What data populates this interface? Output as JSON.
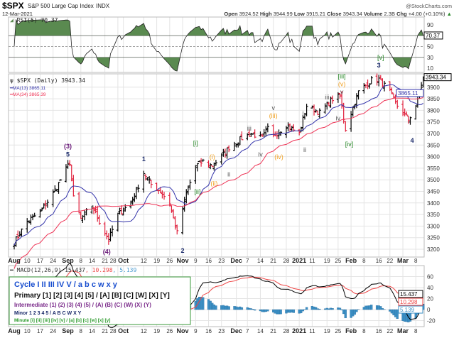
{
  "header": {
    "symbol": "$SPX",
    "name": "S&P 500 Large Cap Index",
    "exchange": "INDX",
    "watermark": "@StockCharts.com",
    "date": "12-Mar-2021",
    "open_label": "Open",
    "open": "3924.52",
    "high_label": "High",
    "high": "3944.99",
    "low_label": "Low",
    "low": "3915.21",
    "close_label": "Close",
    "close": "3943.34",
    "volume_label": "Volume",
    "volume": "2.3B",
    "chg_label": "Chg",
    "chg": "+4.00 (+0.10%)",
    "chg_arrow": "▲"
  },
  "colors": {
    "up": "#000000",
    "down": "#e0203c",
    "ma13": "#3333aa",
    "ma34": "#ee3355",
    "rsi_fill": "#5a8a50",
    "macd": "#000000",
    "signal": "#ee4444",
    "hist": "#3b8fc4",
    "legend_border": "#3a9a3a"
  },
  "chart_data": [
    {
      "type": "line",
      "panel": "RSI",
      "label": "RSI(5)",
      "value": "70.37",
      "ylim": [
        0,
        100
      ],
      "ticks": [
        "90",
        "50",
        "30",
        "10"
      ],
      "levels": [
        70,
        30
      ]
    },
    {
      "type": "ohlc",
      "panel": "price",
      "label": "$SPX (Daily)",
      "value": "3943.34",
      "overlays": [
        {
          "name": "MA(13)",
          "value": "3865.11"
        },
        {
          "name": "MA(34)",
          "value": "3865.39"
        }
      ],
      "ylim": [
        3180,
        3990
      ],
      "yticks": [
        "3900",
        "3850",
        "3800",
        "3750",
        "3700",
        "3650",
        "3600",
        "3550",
        "3500",
        "3450",
        "3400",
        "3350",
        "3300",
        "3250",
        "3200"
      ],
      "approx_closes": [
        [
          "2020-08-03",
          3230
        ],
        [
          "2020-08-10",
          3320
        ],
        [
          "2020-08-17",
          3360
        ],
        [
          "2020-08-24",
          3440
        ],
        [
          "2020-08-28",
          3500
        ],
        [
          "2020-09-02",
          3575
        ],
        [
          "2020-09-04",
          3420
        ],
        [
          "2020-09-08",
          3330
        ],
        [
          "2020-09-14",
          3390
        ],
        [
          "2020-09-18",
          3320
        ],
        [
          "2020-09-23",
          3240
        ],
        [
          "2020-09-28",
          3350
        ],
        [
          "2020-10-05",
          3400
        ],
        [
          "2020-10-12",
          3530
        ],
        [
          "2020-10-16",
          3480
        ],
        [
          "2020-10-21",
          3450
        ],
        [
          "2020-10-26",
          3400
        ],
        [
          "2020-10-30",
          3270
        ],
        [
          "2020-11-04",
          3440
        ],
        [
          "2020-11-09",
          3560
        ],
        [
          "2020-11-13",
          3580
        ],
        [
          "2020-11-18",
          3560
        ],
        [
          "2020-11-23",
          3600
        ],
        [
          "2020-11-27",
          3640
        ],
        [
          "2020-12-04",
          3680
        ],
        [
          "2020-12-09",
          3700
        ],
        [
          "2020-12-15",
          3680
        ],
        [
          "2020-12-18",
          3720
        ],
        [
          "2020-12-21",
          3690
        ],
        [
          "2020-12-28",
          3735
        ],
        [
          "2021-01-04",
          3700
        ],
        [
          "2021-01-08",
          3820
        ],
        [
          "2021-01-15",
          3790
        ],
        [
          "2021-01-22",
          3850
        ],
        [
          "2021-01-26",
          3860
        ],
        [
          "2021-01-29",
          3720
        ],
        [
          "2021-02-05",
          3880
        ],
        [
          "2021-02-12",
          3930
        ],
        [
          "2021-02-16",
          3935
        ],
        [
          "2021-02-22",
          3880
        ],
        [
          "2021-02-25",
          3830
        ],
        [
          "2021-03-04",
          3760
        ],
        [
          "2021-03-08",
          3820
        ],
        [
          "2021-03-12",
          3943
        ]
      ],
      "wave_labels": [
        {
          "text": "(3)",
          "date": "2020-09-01",
          "price": 3635,
          "color": "#6a1b7a"
        },
        {
          "text": "5",
          "date": "2020-09-01",
          "price": 3600,
          "color": "#1a2a6a"
        },
        {
          "text": "(4)",
          "date": "2020-09-22",
          "price": 3180,
          "color": "#6a1b7a"
        },
        {
          "text": "1",
          "date": "2020-10-12",
          "price": 3580,
          "color": "#1a2a6a"
        },
        {
          "text": "2",
          "date": "2020-11-02",
          "price": 3185,
          "color": "#1a2a6a"
        },
        {
          "text": "[i]",
          "date": "2020-11-09",
          "price": 3650,
          "color": "#2a8a2a"
        },
        {
          "text": "[ii]",
          "date": "2020-11-10",
          "price": 3440,
          "color": "#2a8a2a"
        },
        {
          "text": "(i)",
          "date": "2020-11-18",
          "price": 3590,
          "color": "#f0a020"
        },
        {
          "text": "(ii)",
          "date": "2020-11-19",
          "price": 3475,
          "color": "#f0a020"
        },
        {
          "text": "i",
          "date": "2020-11-25",
          "price": 3610,
          "color": "#555555"
        },
        {
          "text": "ii",
          "date": "2020-11-27",
          "price": 3515,
          "color": "#555555"
        },
        {
          "text": "iii",
          "date": "2020-12-08",
          "price": 3712,
          "color": "#555555"
        },
        {
          "text": "iv",
          "date": "2020-12-14",
          "price": 3600,
          "color": "#555555"
        },
        {
          "text": "(iii)",
          "date": "2020-12-21",
          "price": 3768,
          "color": "#f0a020"
        },
        {
          "text": "v",
          "date": "2020-12-21",
          "price": 3738,
          "color": "#555555"
        },
        {
          "text": "(iv)",
          "date": "2020-12-24",
          "price": 3590,
          "color": "#f0a020"
        },
        {
          "text": "i",
          "date": "2021-01-06",
          "price": 3778,
          "color": "#555555"
        },
        {
          "text": "ii",
          "date": "2021-01-07",
          "price": 3620,
          "color": "#555555"
        },
        {
          "text": "iii",
          "date": "2021-01-19",
          "price": 3848,
          "color": "#555555"
        },
        {
          "text": "iv",
          "date": "2021-01-25",
          "price": 3756,
          "color": "#555555"
        },
        {
          "text": "v",
          "date": "2021-01-27",
          "price": 3870,
          "color": "#555555"
        },
        {
          "text": "(v)",
          "date": "2021-01-27",
          "price": 3897,
          "color": "#f0a020"
        },
        {
          "text": "[iii]",
          "date": "2021-01-27",
          "price": 3927,
          "color": "#2a8a2a"
        },
        {
          "text": "[iv]",
          "date": "2021-01-31",
          "price": 3645,
          "color": "#2a8a2a"
        },
        {
          "text": "3",
          "date": "2021-02-16",
          "price": 3985,
          "color": "#1a2a6a"
        },
        {
          "text": "[v]",
          "date": "2021-02-17",
          "price": 3955,
          "color": "#2a8a2a"
        },
        {
          "text": "4",
          "date": "2021-03-06",
          "price": 3660,
          "color": "#1a2a6a"
        }
      ]
    },
    {
      "type": "line+bar",
      "panel": "MACD",
      "label": "MACD(12,26,9)",
      "macd": "15.437",
      "signal": "10.298",
      "histogram": "5.139",
      "ylim": [
        -30,
        70
      ],
      "yticks": [
        "60",
        "40",
        "20",
        "0",
        "-20"
      ]
    }
  ],
  "x_ticks": [
    {
      "label": "Aug",
      "date": "2020-08-03",
      "major": true
    },
    {
      "label": "10",
      "date": "2020-08-10"
    },
    {
      "label": "17",
      "date": "2020-08-17"
    },
    {
      "label": "24",
      "date": "2020-08-24"
    },
    {
      "label": "Sep",
      "date": "2020-09-01",
      "major": true
    },
    {
      "label": "8",
      "date": "2020-09-08"
    },
    {
      "label": "14",
      "date": "2020-09-14"
    },
    {
      "label": "21",
      "date": "2020-09-21"
    },
    {
      "label": "28",
      "date": "2020-09-28"
    },
    {
      "label": "Oct",
      "date": "2020-10-01",
      "major": true
    },
    {
      "label": "12",
      "date": "2020-10-12"
    },
    {
      "label": "19",
      "date": "2020-10-19"
    },
    {
      "label": "26",
      "date": "2020-10-26"
    },
    {
      "label": "Nov",
      "date": "2020-11-02",
      "major": true
    },
    {
      "label": "9",
      "date": "2020-11-09"
    },
    {
      "label": "16",
      "date": "2020-11-16"
    },
    {
      "label": "23",
      "date": "2020-11-23"
    },
    {
      "label": "Dec",
      "date": "2020-12-01",
      "major": true
    },
    {
      "label": "7",
      "date": "2020-12-07"
    },
    {
      "label": "14",
      "date": "2020-12-14"
    },
    {
      "label": "21",
      "date": "2020-12-21"
    },
    {
      "label": "28",
      "date": "2020-12-28"
    },
    {
      "label": "2021",
      "date": "2021-01-04",
      "major": true
    },
    {
      "label": "11",
      "date": "2021-01-11"
    },
    {
      "label": "19",
      "date": "2021-01-19"
    },
    {
      "label": "25",
      "date": "2021-01-25"
    },
    {
      "label": "Feb",
      "date": "2021-02-01",
      "major": true
    },
    {
      "label": "8",
      "date": "2021-02-08"
    },
    {
      "label": "16",
      "date": "2021-02-16"
    },
    {
      "label": "22",
      "date": "2021-02-22"
    },
    {
      "label": "Mar",
      "date": "2021-03-01",
      "major": true
    },
    {
      "label": "8",
      "date": "2021-03-08"
    }
  ],
  "legend": {
    "cycle": "Cycle I II III IV V / a b c w x y",
    "primary": "Primary [1] [2] [3] [4] [5] / [A] [B] [C] [W] [X] [Y]",
    "intermediate": "Intermediate (1) (2) (3) (4) (5) / (A) (B) (C) (W) (X) (Y)",
    "minor": "Minor 1 2 3 4 5 / A B C W X Y",
    "minute": "Minute [i] [ii] [iii] [iv] [v] / [a] [b] [c] [w] [x] [y]"
  }
}
